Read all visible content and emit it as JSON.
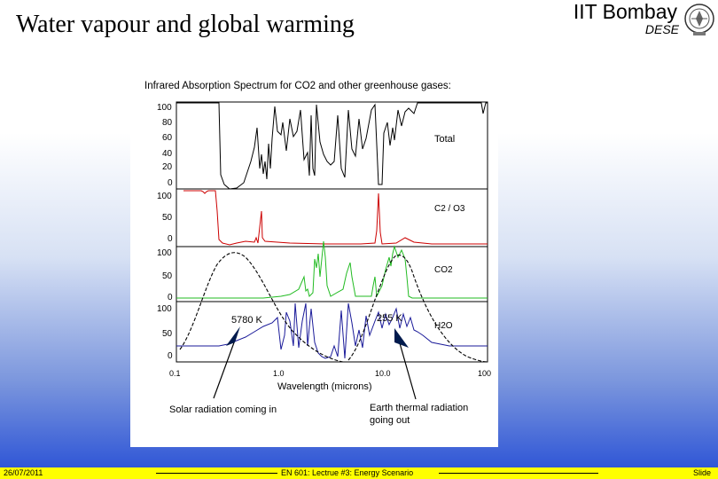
{
  "header": {
    "title": "Water vapour and global warming",
    "organization": "IIT Bombay",
    "department": "DESE",
    "logo_icon": "iitb-emblem"
  },
  "figure": {
    "heading": "Infrared Absorption Spectrum for CO2 and other greenhouse gases:",
    "panels": [
      {
        "label": "Total",
        "y_ticks": [
          "100",
          "80",
          "60",
          "40",
          "20",
          "0"
        ]
      },
      {
        "label": "C2 / O3",
        "y_ticks": [
          "100",
          "50",
          "0"
        ]
      },
      {
        "label": "CO2",
        "y_ticks": [
          "100",
          "50",
          "0"
        ]
      },
      {
        "label": "H2O",
        "y_ticks": [
          "100",
          "50",
          "0"
        ]
      }
    ],
    "x_ticks": [
      "0.1",
      "1.0",
      "10.0",
      "100"
    ],
    "xlabel": "Wavelength (microns)",
    "annotations": {
      "sun_temp": "5780 K",
      "earth_temp": "255 K",
      "solar_label": "Solar radiation coming in",
      "earth_label_line1": "Earth thermal radiation",
      "earth_label_line2": "going out"
    },
    "colors": {
      "total": "#000000",
      "c2o3": "#cc0000",
      "co2": "#22bb22",
      "h2o": "#1a1a99",
      "blackbody": "#000000"
    }
  },
  "footer": {
    "date": "26/07/2011",
    "course": "EN 601: Lectrue #3: Energy Scenario",
    "slide": "Slide"
  }
}
